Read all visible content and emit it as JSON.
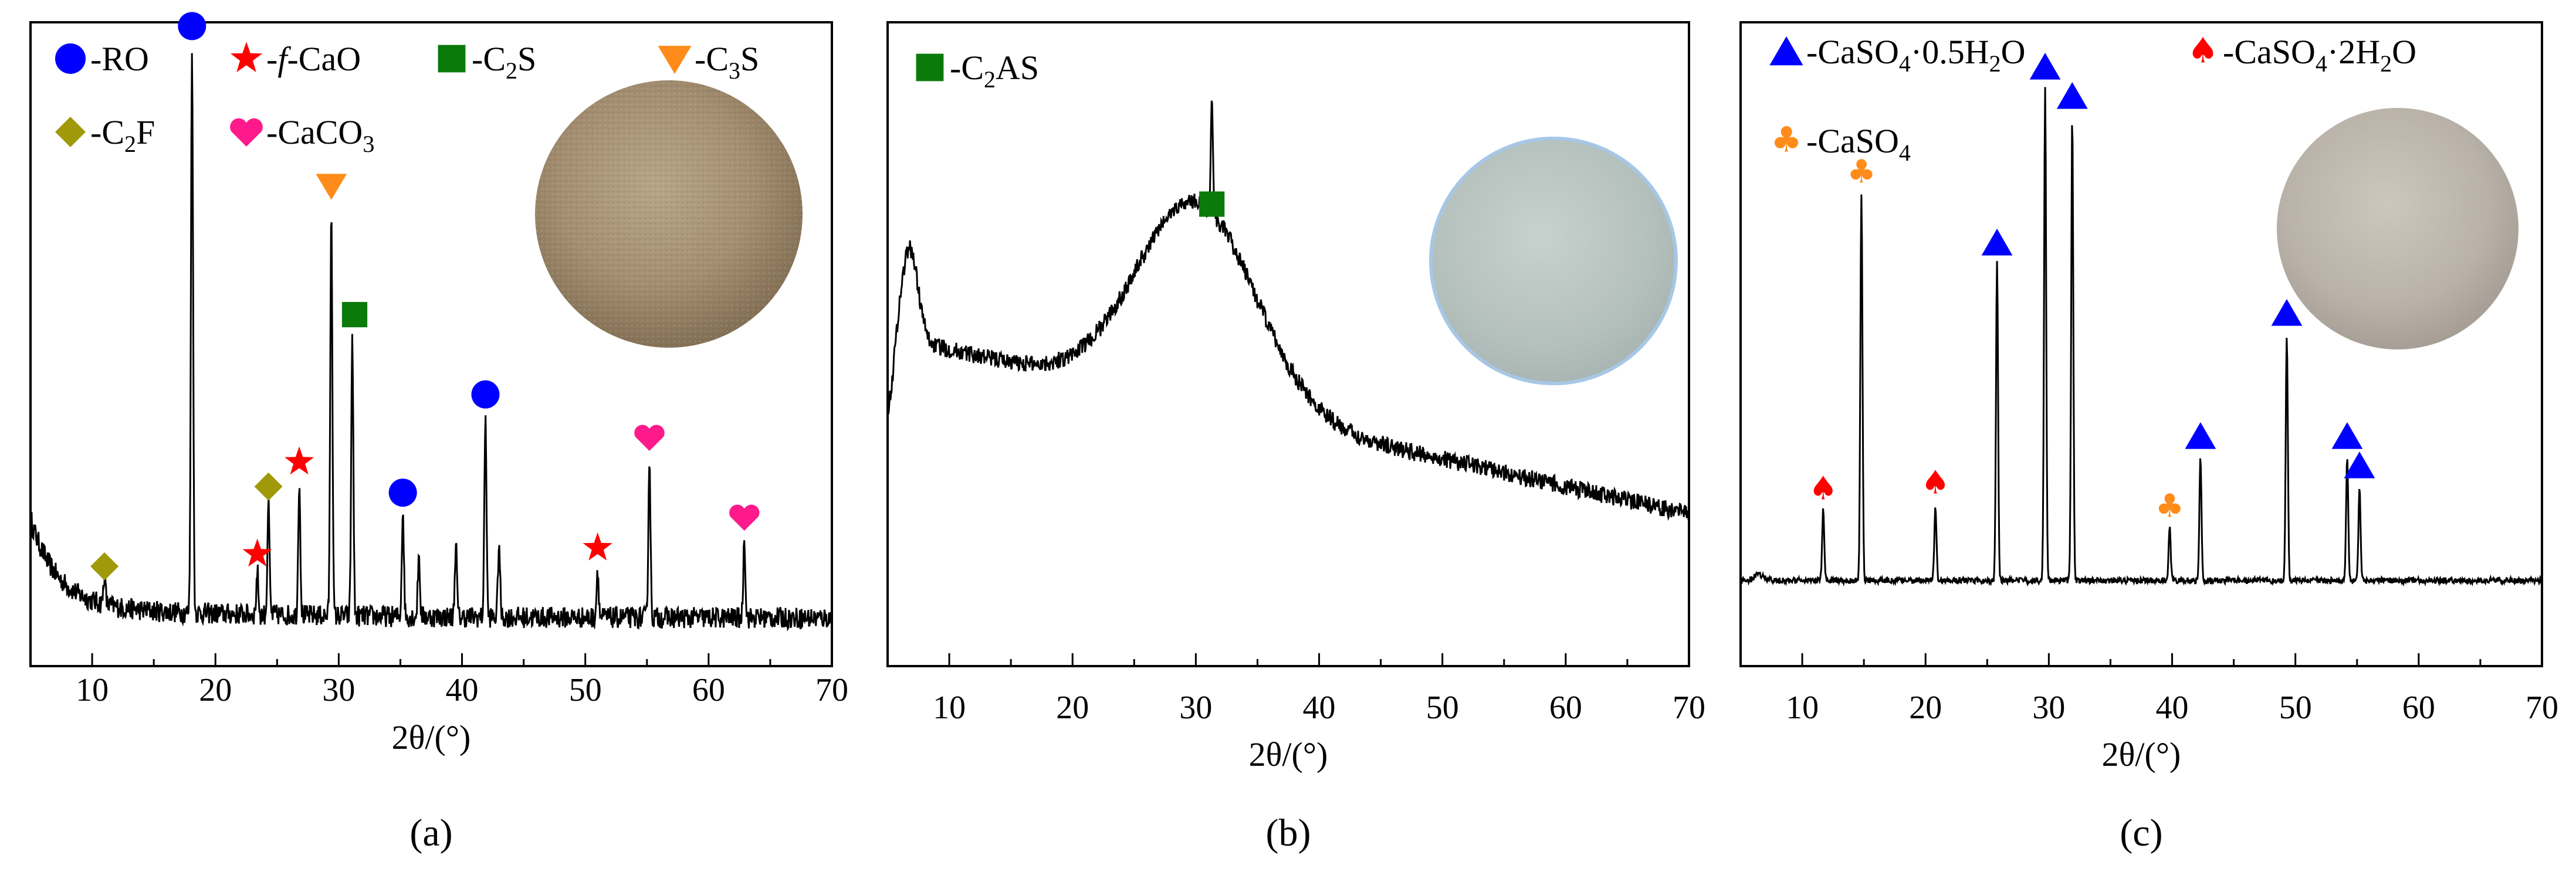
{
  "chart_data": [
    {
      "type": "line",
      "panel_label": "(a)",
      "xlabel": "2θ/(°)",
      "ylabel": "",
      "xlim": [
        5,
        70
      ],
      "x_ticks": [
        "10",
        "20",
        "30",
        "40",
        "50",
        "60",
        "70"
      ],
      "legend": [
        {
          "marker": "circle-icon",
          "text": "-RO",
          "color": "#0000ff"
        },
        {
          "marker": "star-icon",
          "text": "-f-CaO",
          "color": "#ff0000"
        },
        {
          "marker": "square-icon",
          "text": "-C2S",
          "color": "#0a7a0a"
        },
        {
          "marker": "triangle-down-icon",
          "text": "-C3S",
          "color": "#ff8c1a"
        },
        {
          "marker": "diamond-icon",
          "text": "-C2F",
          "color": "#a09a0a"
        },
        {
          "marker": "heart-icon",
          "text": "-CaCO3",
          "color": "#ff1a8c"
        }
      ],
      "baseline": 0.06,
      "peaks": [
        {
          "x": 11.0,
          "h": 0.05,
          "marker": "diamond-icon"
        },
        {
          "x": 18.1,
          "h": 0.93,
          "marker": "circle-icon"
        },
        {
          "x": 23.4,
          "h": 0.07,
          "marker": "star-icon"
        },
        {
          "x": 24.3,
          "h": 0.18,
          "marker": "diamond-icon"
        },
        {
          "x": 26.8,
          "h": 0.22,
          "marker": "star-icon"
        },
        {
          "x": 29.4,
          "h": 0.67,
          "marker": "triangle-down-icon"
        },
        {
          "x": 31.1,
          "h": 0.46,
          "marker": "square-icon"
        },
        {
          "x": 35.2,
          "h": 0.17,
          "marker": "circle-icon"
        },
        {
          "x": 36.5,
          "h": 0.1
        },
        {
          "x": 39.5,
          "h": 0.12
        },
        {
          "x": 41.9,
          "h": 0.33,
          "marker": "circle-icon"
        },
        {
          "x": 43.0,
          "h": 0.12
        },
        {
          "x": 51.0,
          "h": 0.08,
          "marker": "star-icon"
        },
        {
          "x": 55.2,
          "h": 0.26,
          "marker": "heart-icon"
        },
        {
          "x": 62.9,
          "h": 0.13,
          "marker": "heart-icon"
        }
      ]
    },
    {
      "type": "line",
      "panel_label": "(b)",
      "xlabel": "2θ/(°)",
      "ylabel": "",
      "xlim": [
        5,
        70
      ],
      "x_ticks": [
        "10",
        "20",
        "30",
        "40",
        "50",
        "60",
        "70"
      ],
      "legend": [
        {
          "marker": "square-icon",
          "text": "-C2AS",
          "color": "#0a7a0a"
        }
      ],
      "hump": {
        "center": 30,
        "height": 0.33,
        "width": 4.8
      },
      "background": {
        "start": 0.52,
        "end": 0.23
      },
      "low_angle_bump": {
        "center": 6.8,
        "height": 0.15
      },
      "peaks": [
        {
          "x": 31.3,
          "h": 0.7,
          "marker": "square-icon"
        }
      ]
    },
    {
      "type": "line",
      "panel_label": "(c)",
      "xlabel": "2θ/(°)",
      "ylabel": "",
      "xlim": [
        5,
        70
      ],
      "x_ticks": [
        "10",
        "20",
        "30",
        "40",
        "50",
        "60",
        "70"
      ],
      "legend": [
        {
          "marker": "triangle-up-icon",
          "text": "-CaSO4·0.5H2O",
          "color": "#0000ff"
        },
        {
          "marker": "spade-icon",
          "text": "-CaSO4·2H2O",
          "color": "#ff0000"
        },
        {
          "marker": "club-icon",
          "text": "-CaSO4",
          "color": "#ff8c1a"
        }
      ],
      "baseline": 0.08,
      "peaks": [
        {
          "x": 11.7,
          "h": 0.12,
          "marker": "spade-icon"
        },
        {
          "x": 14.8,
          "h": 0.66,
          "marker": "club-icon"
        },
        {
          "x": 20.8,
          "h": 0.13,
          "marker": "spade-icon"
        },
        {
          "x": 25.8,
          "h": 0.54,
          "marker": "triangle-up-icon"
        },
        {
          "x": 29.7,
          "h": 0.84,
          "marker": "triangle-up-icon"
        },
        {
          "x": 31.9,
          "h": 0.79,
          "marker": "triangle-up-icon"
        },
        {
          "x": 39.8,
          "h": 0.09,
          "marker": "club-icon"
        },
        {
          "x": 42.3,
          "h": 0.21,
          "marker": "triangle-up-icon"
        },
        {
          "x": 49.3,
          "h": 0.42,
          "marker": "triangle-up-icon"
        },
        {
          "x": 54.2,
          "h": 0.21,
          "marker": "triangle-up-icon"
        },
        {
          "x": 55.2,
          "h": 0.16,
          "marker": "triangle-up-icon"
        }
      ]
    }
  ]
}
